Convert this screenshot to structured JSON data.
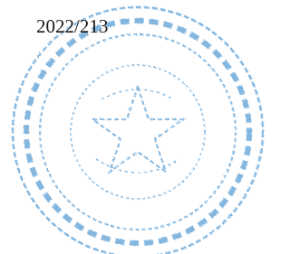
{
  "document": {
    "reference": "2022/213"
  }
}
